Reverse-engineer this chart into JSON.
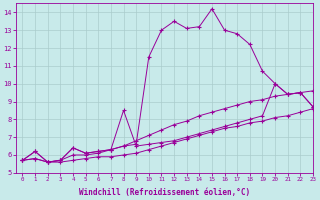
{
  "xlabel": "Windchill (Refroidissement éolien,°C)",
  "xlim": [
    -0.5,
    23
  ],
  "ylim": [
    5,
    14.5
  ],
  "xticks": [
    0,
    1,
    2,
    3,
    4,
    5,
    6,
    7,
    8,
    9,
    10,
    11,
    12,
    13,
    14,
    15,
    16,
    17,
    18,
    19,
    20,
    21,
    22,
    23
  ],
  "yticks": [
    5,
    6,
    7,
    8,
    9,
    10,
    11,
    12,
    13,
    14
  ],
  "bg_color": "#c8eaea",
  "line_color": "#990099",
  "grid_color": "#aacccc",
  "series": [
    {
      "x": [
        0,
        1,
        2,
        3,
        4,
        5,
        6,
        7,
        8,
        9,
        10,
        11,
        12,
        13,
        14,
        15,
        16,
        17,
        18,
        19,
        20,
        21,
        22,
        23
      ],
      "y": [
        5.7,
        5.8,
        5.6,
        5.6,
        5.7,
        5.8,
        5.9,
        5.9,
        6.0,
        6.1,
        6.3,
        6.5,
        6.7,
        6.9,
        7.1,
        7.3,
        7.5,
        7.6,
        7.8,
        7.9,
        8.1,
        8.2,
        8.4,
        8.6
      ]
    },
    {
      "x": [
        0,
        1,
        2,
        3,
        4,
        5,
        6,
        7,
        8,
        9,
        10,
        11,
        12,
        13,
        14,
        15,
        16,
        17,
        18,
        19,
        20,
        21,
        22,
        23
      ],
      "y": [
        5.7,
        5.8,
        5.6,
        5.7,
        6.0,
        6.0,
        6.1,
        6.3,
        6.5,
        6.8,
        7.1,
        7.4,
        7.7,
        7.9,
        8.2,
        8.4,
        8.6,
        8.8,
        9.0,
        9.1,
        9.3,
        9.4,
        9.5,
        9.6
      ]
    },
    {
      "x": [
        0,
        1,
        2,
        3,
        4,
        5,
        6,
        7,
        8,
        9,
        10,
        11,
        12,
        13,
        14,
        15,
        16,
        17,
        18,
        19,
        20,
        21,
        22,
        23
      ],
      "y": [
        5.7,
        6.2,
        5.6,
        5.7,
        6.4,
        6.1,
        6.2,
        6.3,
        8.5,
        6.5,
        6.6,
        6.7,
        6.8,
        7.0,
        7.2,
        7.4,
        7.6,
        7.8,
        8.0,
        8.2,
        10.0,
        9.4,
        9.5,
        8.7
      ]
    },
    {
      "x": [
        0,
        1,
        2,
        3,
        4,
        5,
        6,
        7,
        8,
        9,
        10,
        11,
        12,
        13,
        14,
        15,
        16,
        17,
        18,
        19,
        20,
        21,
        22,
        23
      ],
      "y": [
        5.7,
        6.2,
        5.6,
        5.7,
        6.4,
        6.1,
        6.2,
        6.3,
        6.5,
        6.6,
        11.5,
        13.0,
        13.5,
        13.1,
        13.2,
        14.2,
        13.0,
        12.8,
        12.2,
        10.7,
        10.0,
        9.4,
        9.5,
        8.7
      ]
    }
  ]
}
